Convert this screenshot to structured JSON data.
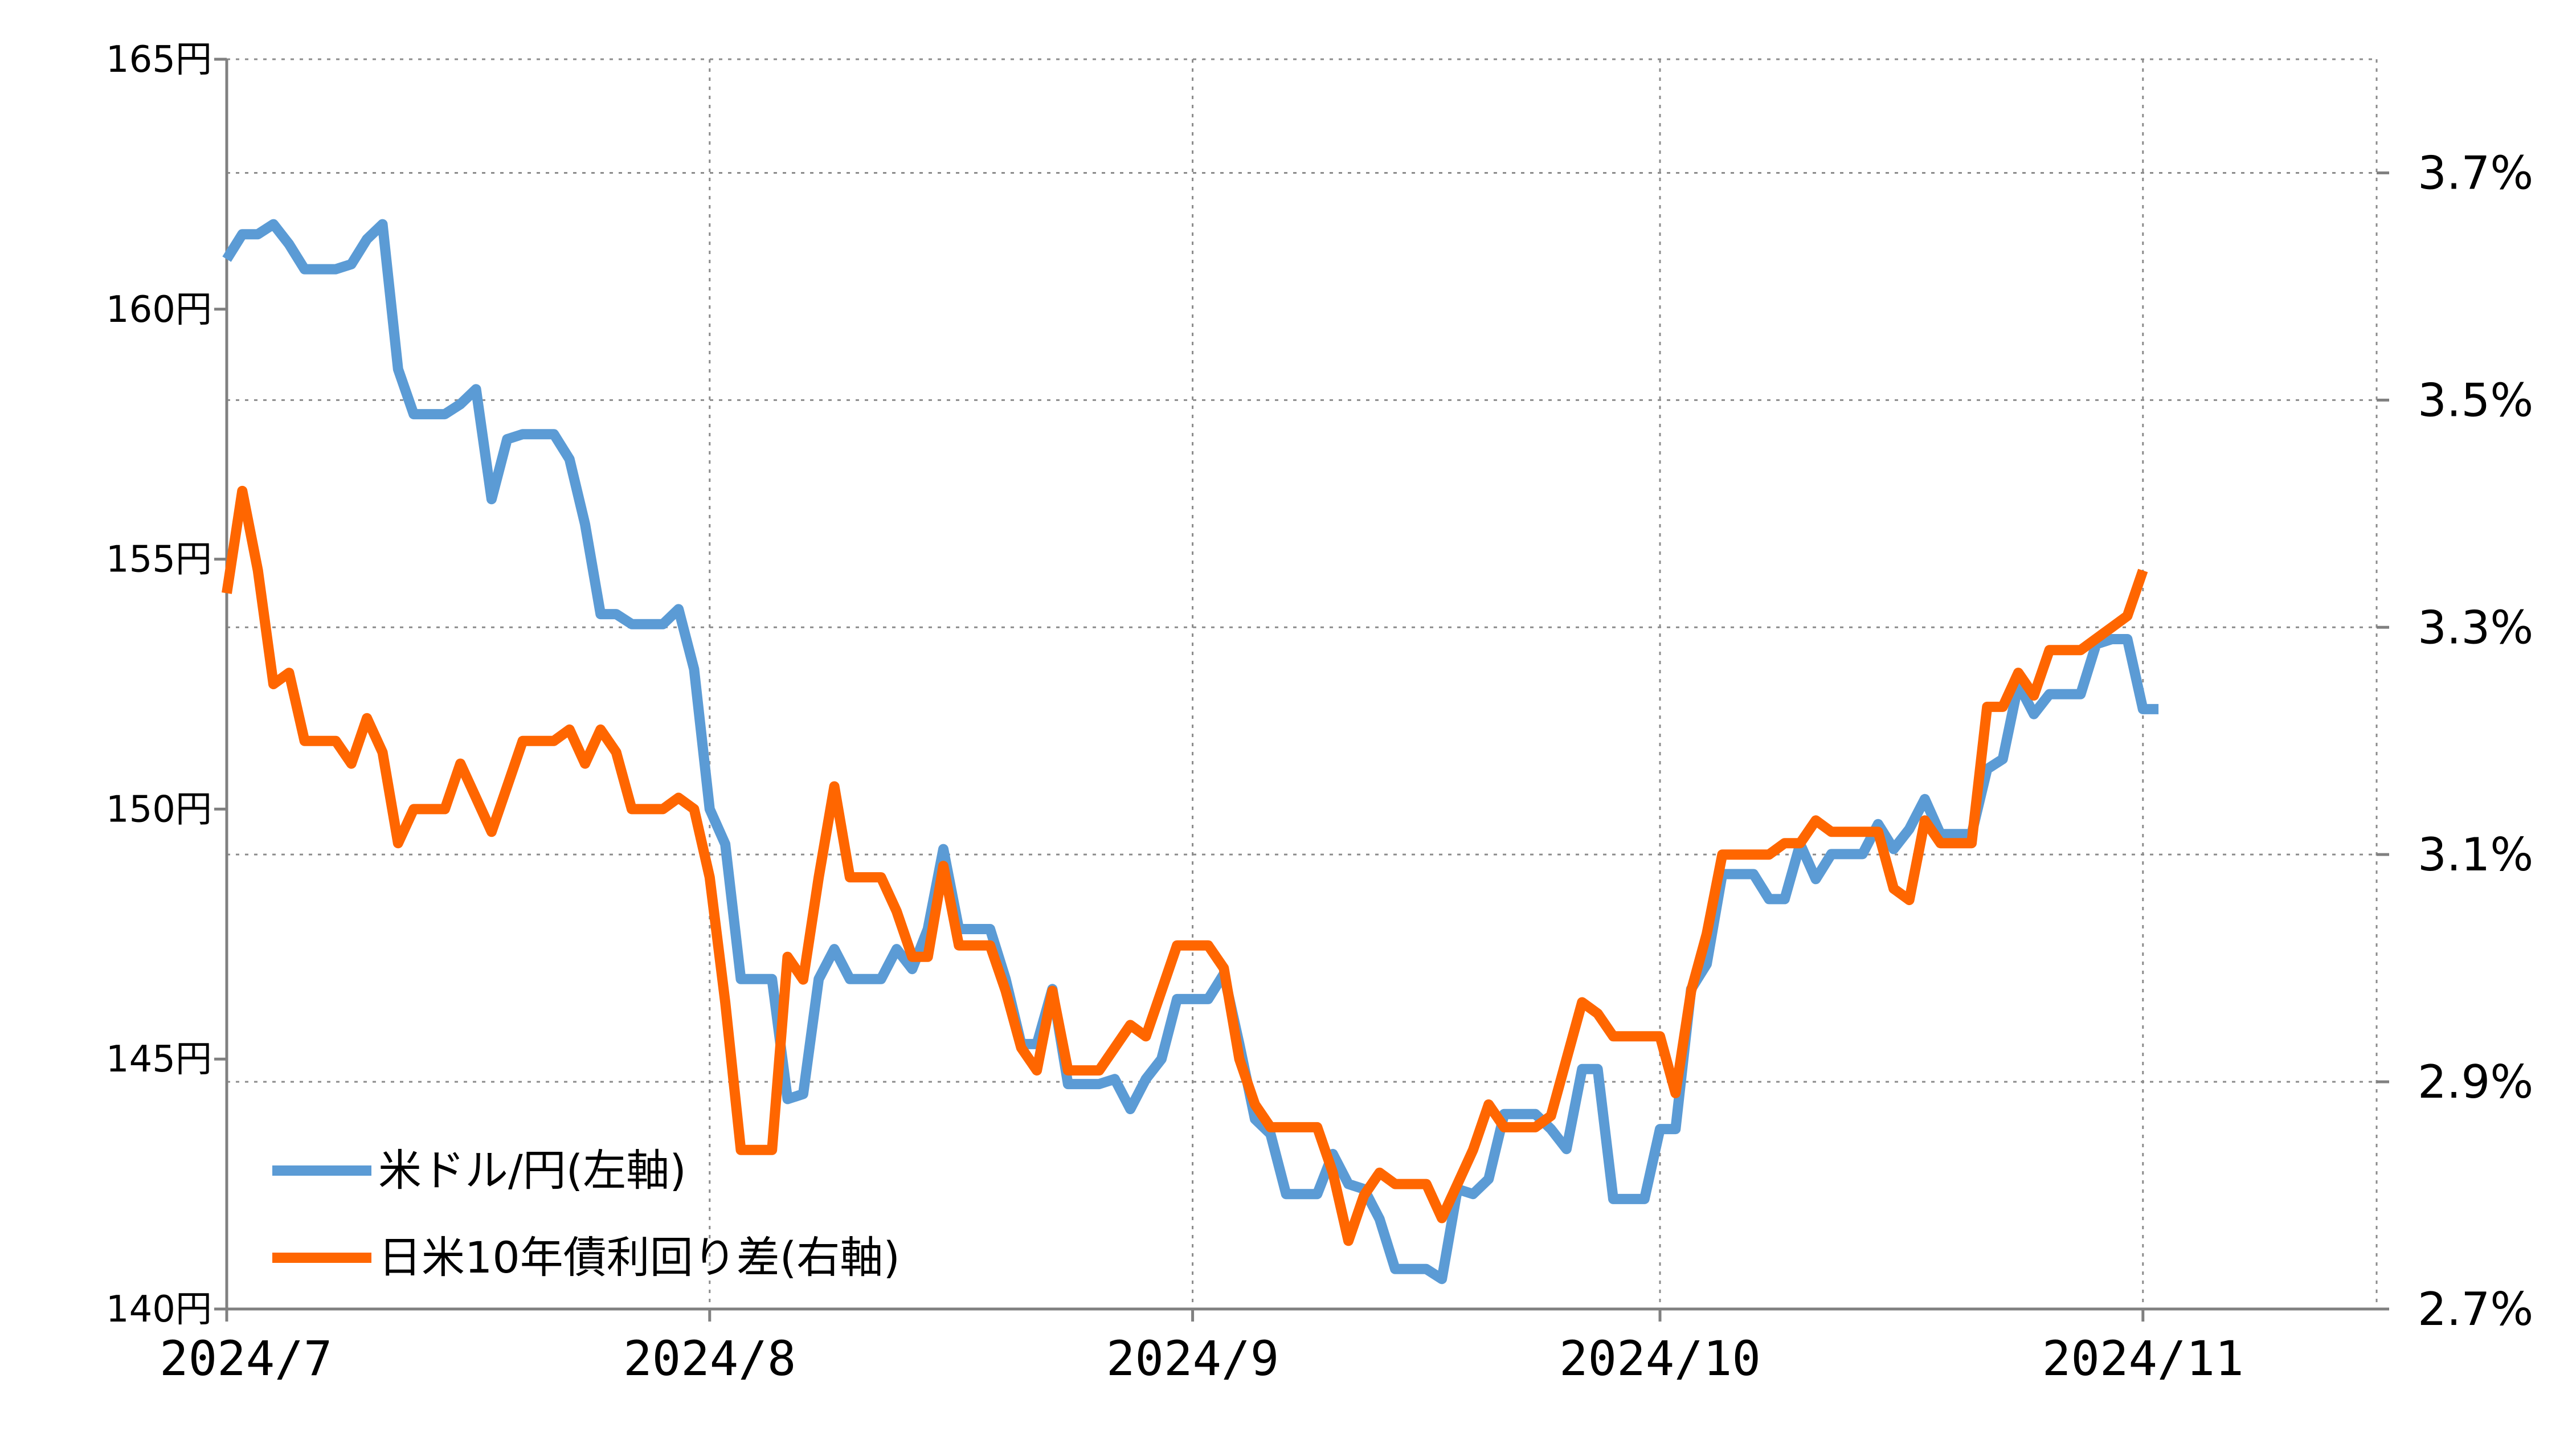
{
  "chart_data": {
    "type": "line",
    "title": "",
    "xlabel": "",
    "ylabel": "",
    "y_left": {
      "lim": [
        140,
        165
      ],
      "ticks": [
        140,
        145,
        150,
        155,
        160,
        165
      ],
      "tick_labels": [
        "140円",
        "145円",
        "150円",
        "155円",
        "160円",
        "165円"
      ]
    },
    "y_right": {
      "lim": [
        2.7,
        3.8
      ],
      "ticks": [
        2.7,
        2.9,
        3.1,
        3.3,
        3.5,
        3.7
      ],
      "tick_labels": [
        "2.7%",
        "2.9%",
        "3.1%",
        "3.3%",
        "3.5%",
        "3.7%"
      ]
    },
    "x_axis": {
      "start": "2024-07-01",
      "end": "2024-11-16",
      "ticks": [
        "2024-07-01",
        "2024-08-01",
        "2024-09-01",
        "2024-10-01",
        "2024-11-01"
      ],
      "tick_labels": [
        "2024/7",
        "2024/8",
        "2024/9",
        "2024/10",
        "2024/11"
      ]
    },
    "grid": true,
    "legend_position": "bottom-left",
    "series": [
      {
        "name": "米ドル/円(左軸)",
        "axis": "left",
        "color": "#5b9bd5",
        "points": [
          [
            "2024-07-01",
            161.0
          ],
          [
            "2024-07-02",
            161.5
          ],
          [
            "2024-07-03",
            161.5
          ],
          [
            "2024-07-04",
            161.7
          ],
          [
            "2024-07-05",
            161.3
          ],
          [
            "2024-07-06",
            160.8
          ],
          [
            "2024-07-07",
            160.8
          ],
          [
            "2024-07-08",
            160.8
          ],
          [
            "2024-07-09",
            160.9
          ],
          [
            "2024-07-10",
            161.4
          ],
          [
            "2024-07-11",
            161.7
          ],
          [
            "2024-07-12",
            158.8
          ],
          [
            "2024-07-13",
            157.9
          ],
          [
            "2024-07-14",
            157.9
          ],
          [
            "2024-07-15",
            157.9
          ],
          [
            "2024-07-16",
            158.1
          ],
          [
            "2024-07-17",
            158.4
          ],
          [
            "2024-07-18",
            156.2
          ],
          [
            "2024-07-19",
            157.4
          ],
          [
            "2024-07-20",
            157.5
          ],
          [
            "2024-07-21",
            157.5
          ],
          [
            "2024-07-22",
            157.5
          ],
          [
            "2024-07-23",
            157.0
          ],
          [
            "2024-07-24",
            155.7
          ],
          [
            "2024-07-25",
            153.9
          ],
          [
            "2024-07-26",
            153.9
          ],
          [
            "2024-07-27",
            153.7
          ],
          [
            "2024-07-28",
            153.7
          ],
          [
            "2024-07-29",
            153.7
          ],
          [
            "2024-07-30",
            154.0
          ],
          [
            "2024-07-31",
            152.8
          ],
          [
            "2024-08-01",
            150.0
          ],
          [
            "2024-08-02",
            149.3
          ],
          [
            "2024-08-03",
            146.6
          ],
          [
            "2024-08-04",
            146.6
          ],
          [
            "2024-08-05",
            146.6
          ],
          [
            "2024-08-06",
            144.2
          ],
          [
            "2024-08-07",
            144.3
          ],
          [
            "2024-08-08",
            146.6
          ],
          [
            "2024-08-09",
            147.2
          ],
          [
            "2024-08-10",
            146.6
          ],
          [
            "2024-08-11",
            146.6
          ],
          [
            "2024-08-12",
            146.6
          ],
          [
            "2024-08-13",
            147.2
          ],
          [
            "2024-08-14",
            146.8
          ],
          [
            "2024-08-15",
            147.6
          ],
          [
            "2024-08-16",
            149.2
          ],
          [
            "2024-08-17",
            147.6
          ],
          [
            "2024-08-18",
            147.6
          ],
          [
            "2024-08-19",
            147.6
          ],
          [
            "2024-08-20",
            146.6
          ],
          [
            "2024-08-21",
            145.3
          ],
          [
            "2024-08-22",
            145.3
          ],
          [
            "2024-08-23",
            146.4
          ],
          [
            "2024-08-24",
            144.5
          ],
          [
            "2024-08-25",
            144.5
          ],
          [
            "2024-08-26",
            144.5
          ],
          [
            "2024-08-27",
            144.6
          ],
          [
            "2024-08-28",
            144.0
          ],
          [
            "2024-08-29",
            144.6
          ],
          [
            "2024-08-30",
            145.0
          ],
          [
            "2024-08-31",
            146.2
          ],
          [
            "2024-09-01",
            146.2
          ],
          [
            "2024-09-02",
            146.2
          ],
          [
            "2024-09-03",
            146.7
          ],
          [
            "2024-09-04",
            145.3
          ],
          [
            "2024-09-05",
            143.8
          ],
          [
            "2024-09-06",
            143.5
          ],
          [
            "2024-09-07",
            142.3
          ],
          [
            "2024-09-08",
            142.3
          ],
          [
            "2024-09-09",
            142.3
          ],
          [
            "2024-09-10",
            143.1
          ],
          [
            "2024-09-11",
            142.5
          ],
          [
            "2024-09-12",
            142.4
          ],
          [
            "2024-09-13",
            141.8
          ],
          [
            "2024-09-14",
            140.8
          ],
          [
            "2024-09-15",
            140.8
          ],
          [
            "2024-09-16",
            140.8
          ],
          [
            "2024-09-17",
            140.6
          ],
          [
            "2024-09-18",
            142.4
          ],
          [
            "2024-09-19",
            142.3
          ],
          [
            "2024-09-20",
            142.6
          ],
          [
            "2024-09-21",
            143.9
          ],
          [
            "2024-09-22",
            143.9
          ],
          [
            "2024-09-23",
            143.9
          ],
          [
            "2024-09-24",
            143.6
          ],
          [
            "2024-09-25",
            143.2
          ],
          [
            "2024-09-26",
            144.8
          ],
          [
            "2024-09-27",
            144.8
          ],
          [
            "2024-09-28",
            142.2
          ],
          [
            "2024-09-29",
            142.2
          ],
          [
            "2024-09-30",
            142.2
          ],
          [
            "2024-10-01",
            143.6
          ],
          [
            "2024-10-02",
            143.6
          ],
          [
            "2024-10-03",
            146.4
          ],
          [
            "2024-10-04",
            146.9
          ],
          [
            "2024-10-05",
            148.7
          ],
          [
            "2024-10-06",
            148.7
          ],
          [
            "2024-10-07",
            148.7
          ],
          [
            "2024-10-08",
            148.2
          ],
          [
            "2024-10-09",
            148.2
          ],
          [
            "2024-10-10",
            149.3
          ],
          [
            "2024-10-11",
            148.6
          ],
          [
            "2024-10-12",
            149.1
          ],
          [
            "2024-10-13",
            149.1
          ],
          [
            "2024-10-14",
            149.1
          ],
          [
            "2024-10-15",
            149.7
          ],
          [
            "2024-10-16",
            149.2
          ],
          [
            "2024-10-17",
            149.6
          ],
          [
            "2024-10-18",
            150.2
          ],
          [
            "2024-10-19",
            149.5
          ],
          [
            "2024-10-20",
            149.5
          ],
          [
            "2024-10-21",
            149.5
          ],
          [
            "2024-10-22",
            150.8
          ],
          [
            "2024-10-23",
            151.0
          ],
          [
            "2024-10-24",
            152.5
          ],
          [
            "2024-10-25",
            151.9
          ],
          [
            "2024-10-26",
            152.3
          ],
          [
            "2024-10-27",
            152.3
          ],
          [
            "2024-10-28",
            152.3
          ],
          [
            "2024-10-29",
            153.3
          ],
          [
            "2024-10-30",
            153.4
          ],
          [
            "2024-10-31",
            153.4
          ],
          [
            "2024-11-01",
            152.0
          ],
          [
            "2024-11-02",
            152.0
          ]
        ]
      },
      {
        "name": "日米10年債利回り差(右軸)",
        "axis": "right",
        "color": "#ff6600",
        "points": [
          [
            "2024-07-01",
            3.33
          ],
          [
            "2024-07-02",
            3.42
          ],
          [
            "2024-07-03",
            3.35
          ],
          [
            "2024-07-04",
            3.25
          ],
          [
            "2024-07-05",
            3.26
          ],
          [
            "2024-07-06",
            3.2
          ],
          [
            "2024-07-07",
            3.2
          ],
          [
            "2024-07-08",
            3.2
          ],
          [
            "2024-07-09",
            3.18
          ],
          [
            "2024-07-10",
            3.22
          ],
          [
            "2024-07-11",
            3.19
          ],
          [
            "2024-07-12",
            3.11
          ],
          [
            "2024-07-13",
            3.14
          ],
          [
            "2024-07-14",
            3.14
          ],
          [
            "2024-07-15",
            3.14
          ],
          [
            "2024-07-16",
            3.18
          ],
          [
            "2024-07-17",
            3.15
          ],
          [
            "2024-07-18",
            3.12
          ],
          [
            "2024-07-19",
            3.16
          ],
          [
            "2024-07-20",
            3.2
          ],
          [
            "2024-07-21",
            3.2
          ],
          [
            "2024-07-22",
            3.2
          ],
          [
            "2024-07-23",
            3.21
          ],
          [
            "2024-07-24",
            3.18
          ],
          [
            "2024-07-25",
            3.21
          ],
          [
            "2024-07-26",
            3.19
          ],
          [
            "2024-07-27",
            3.14
          ],
          [
            "2024-07-28",
            3.14
          ],
          [
            "2024-07-29",
            3.14
          ],
          [
            "2024-07-30",
            3.15
          ],
          [
            "2024-07-31",
            3.14
          ],
          [
            "2024-08-01",
            3.08
          ],
          [
            "2024-08-02",
            2.97
          ],
          [
            "2024-08-03",
            2.84
          ],
          [
            "2024-08-04",
            2.84
          ],
          [
            "2024-08-05",
            2.84
          ],
          [
            "2024-08-06",
            3.01
          ],
          [
            "2024-08-07",
            2.99
          ],
          [
            "2024-08-08",
            3.08
          ],
          [
            "2024-08-09",
            3.16
          ],
          [
            "2024-08-10",
            3.08
          ],
          [
            "2024-08-11",
            3.08
          ],
          [
            "2024-08-12",
            3.08
          ],
          [
            "2024-08-13",
            3.05
          ],
          [
            "2024-08-14",
            3.01
          ],
          [
            "2024-08-15",
            3.01
          ],
          [
            "2024-08-16",
            3.09
          ],
          [
            "2024-08-17",
            3.02
          ],
          [
            "2024-08-18",
            3.02
          ],
          [
            "2024-08-19",
            3.02
          ],
          [
            "2024-08-20",
            2.98
          ],
          [
            "2024-08-21",
            2.93
          ],
          [
            "2024-08-22",
            2.91
          ],
          [
            "2024-08-23",
            2.98
          ],
          [
            "2024-08-24",
            2.91
          ],
          [
            "2024-08-25",
            2.91
          ],
          [
            "2024-08-26",
            2.91
          ],
          [
            "2024-08-27",
            2.93
          ],
          [
            "2024-08-28",
            2.95
          ],
          [
            "2024-08-29",
            2.94
          ],
          [
            "2024-08-30",
            2.98
          ],
          [
            "2024-08-31",
            3.02
          ],
          [
            "2024-09-01",
            3.02
          ],
          [
            "2024-09-02",
            3.02
          ],
          [
            "2024-09-03",
            3.0
          ],
          [
            "2024-09-04",
            2.92
          ],
          [
            "2024-09-05",
            2.88
          ],
          [
            "2024-09-06",
            2.86
          ],
          [
            "2024-09-07",
            2.86
          ],
          [
            "2024-09-08",
            2.86
          ],
          [
            "2024-09-09",
            2.86
          ],
          [
            "2024-09-10",
            2.82
          ],
          [
            "2024-09-11",
            2.76
          ],
          [
            "2024-09-12",
            2.8
          ],
          [
            "2024-09-13",
            2.82
          ],
          [
            "2024-09-14",
            2.81
          ],
          [
            "2024-09-15",
            2.81
          ],
          [
            "2024-09-16",
            2.81
          ],
          [
            "2024-09-17",
            2.78
          ],
          [
            "2024-09-18",
            2.81
          ],
          [
            "2024-09-19",
            2.84
          ],
          [
            "2024-09-20",
            2.88
          ],
          [
            "2024-09-21",
            2.86
          ],
          [
            "2024-09-22",
            2.86
          ],
          [
            "2024-09-23",
            2.86
          ],
          [
            "2024-09-24",
            2.87
          ],
          [
            "2024-09-25",
            2.92
          ],
          [
            "2024-09-26",
            2.97
          ],
          [
            "2024-09-27",
            2.96
          ],
          [
            "2024-09-28",
            2.94
          ],
          [
            "2024-09-29",
            2.94
          ],
          [
            "2024-09-30",
            2.94
          ],
          [
            "2024-10-01",
            2.94
          ],
          [
            "2024-10-02",
            2.89
          ],
          [
            "2024-10-03",
            2.98
          ],
          [
            "2024-10-04",
            3.03
          ],
          [
            "2024-10-05",
            3.1
          ],
          [
            "2024-10-06",
            3.1
          ],
          [
            "2024-10-07",
            3.1
          ],
          [
            "2024-10-08",
            3.1
          ],
          [
            "2024-10-09",
            3.11
          ],
          [
            "2024-10-10",
            3.11
          ],
          [
            "2024-10-11",
            3.13
          ],
          [
            "2024-10-12",
            3.12
          ],
          [
            "2024-10-13",
            3.12
          ],
          [
            "2024-10-14",
            3.12
          ],
          [
            "2024-10-15",
            3.12
          ],
          [
            "2024-10-16",
            3.07
          ],
          [
            "2024-10-17",
            3.06
          ],
          [
            "2024-10-18",
            3.13
          ],
          [
            "2024-10-19",
            3.11
          ],
          [
            "2024-10-20",
            3.11
          ],
          [
            "2024-10-21",
            3.11
          ],
          [
            "2024-10-22",
            3.23
          ],
          [
            "2024-10-23",
            3.23
          ],
          [
            "2024-10-24",
            3.26
          ],
          [
            "2024-10-25",
            3.24
          ],
          [
            "2024-10-26",
            3.28
          ],
          [
            "2024-10-27",
            3.28
          ],
          [
            "2024-10-28",
            3.28
          ],
          [
            "2024-10-29",
            3.29
          ],
          [
            "2024-10-30",
            3.3
          ],
          [
            "2024-10-31",
            3.31
          ],
          [
            "2024-11-01",
            3.35
          ]
        ]
      }
    ]
  }
}
